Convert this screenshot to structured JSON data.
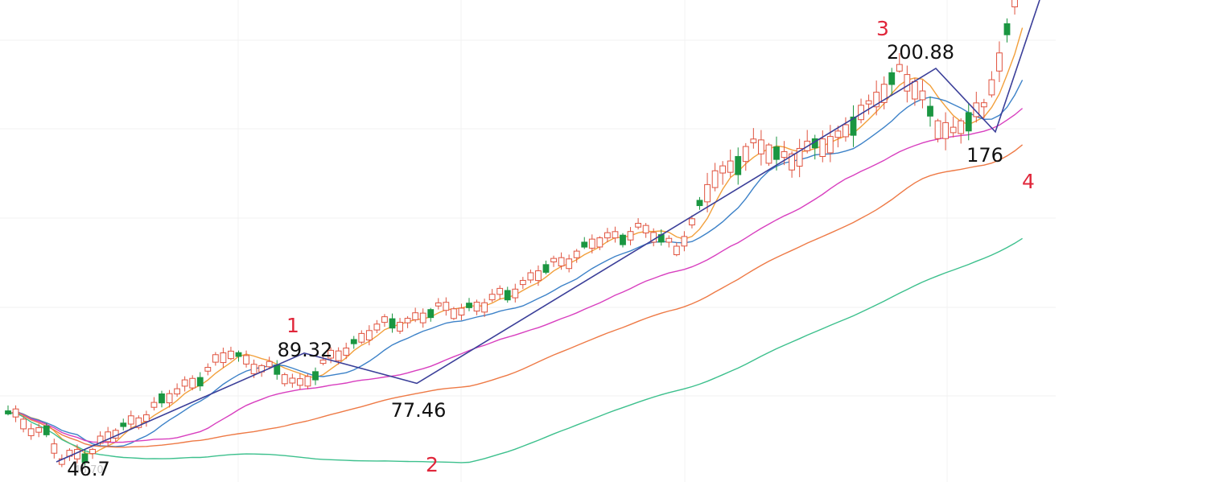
{
  "chart_data": {
    "type": "candlestick",
    "title": "",
    "xlabel": "",
    "ylabel": "",
    "grid": true,
    "colors": {
      "up": "#e0533f",
      "down": "#1a9641",
      "wave_line": "#3b3f99",
      "wave_number": "#e0263a",
      "price_label": "#111111"
    },
    "wave_points": [
      {
        "wave": "",
        "price": "46.7",
        "value": 46.7
      },
      {
        "wave": "1",
        "price": "89.32",
        "value": 89.32
      },
      {
        "wave": "2",
        "price": "77.46",
        "value": 77.46
      },
      {
        "wave": "3",
        "price": "200.88",
        "value": 200.88
      },
      {
        "wave": "4",
        "price": "176",
        "value": 176
      }
    ],
    "faint_label": "46.70",
    "moving_averages": [
      {
        "color": "#f2a03c"
      },
      {
        "color": "#3d82c8"
      },
      {
        "color": "#d83fbf"
      },
      {
        "color": "#ee7a46"
      },
      {
        "color": "#3dc08d"
      }
    ]
  }
}
